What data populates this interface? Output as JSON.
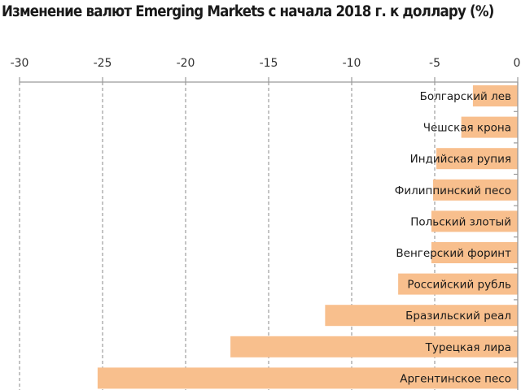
{
  "chart_data": {
    "type": "bar",
    "orientation": "horizontal",
    "title": "Изменение валют Emerging Markets с начала 2018 г. к доллару (%)",
    "xlabel": "",
    "ylabel": "",
    "xlim": [
      -30,
      0
    ],
    "x_ticks": [
      "-30",
      "-25",
      "-20",
      "-15",
      "-10",
      "-5",
      "0"
    ],
    "x_tick_values": [
      -30,
      -25,
      -20,
      -15,
      -10,
      -5,
      0
    ],
    "grid": true,
    "categories": [
      "Болгарский лев",
      "Чешская крона",
      "Индийская рупия",
      "Филиппинский песо",
      "Польский злотый",
      "Венгерский форинт",
      "Российский рубль",
      "Бразильский реал",
      "Турецкая лира",
      "Аргентинское песо"
    ],
    "values": [
      -2.7,
      -3.4,
      -4.9,
      -5.1,
      -5.2,
      -5.2,
      -7.2,
      -11.6,
      -17.3,
      -25.3
    ],
    "bar_color": "#f8bf8d",
    "axis_color": "#9a9a9a"
  }
}
